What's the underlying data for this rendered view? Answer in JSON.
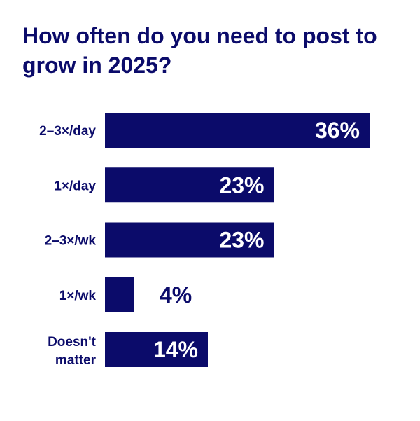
{
  "title": "How often do you need to post to grow in 2025?",
  "colors": {
    "bar": "#0b0b6a",
    "label_inside": "#ffffff",
    "label_outside": "#0b0b6a"
  },
  "chart_data": {
    "type": "bar",
    "orientation": "horizontal",
    "categories": [
      "2–3×/day",
      "1×/day",
      "2–3×/wk",
      "1×/wk",
      "Doesn't matter"
    ],
    "values": [
      36,
      23,
      23,
      4,
      14
    ],
    "value_labels": [
      "36%",
      "23%",
      "23%",
      "4%",
      "14%"
    ],
    "unit": "%",
    "grid": false,
    "legend": "none"
  }
}
